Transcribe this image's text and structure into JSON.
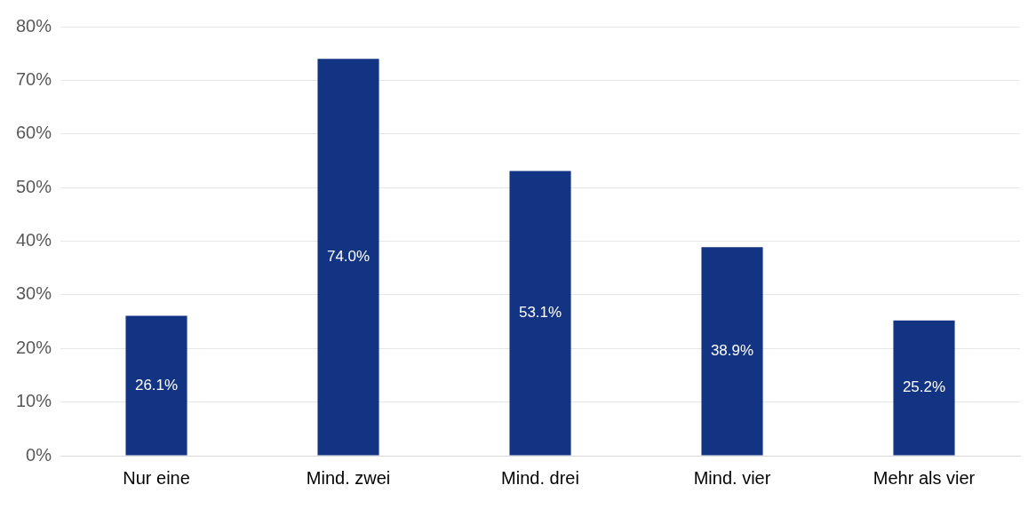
{
  "chart_data": {
    "type": "bar",
    "categories": [
      "Nur eine",
      "Mind. zwei",
      "Mind. drei",
      "Mind. vier",
      "Mehr als vier"
    ],
    "values": [
      26.1,
      74.0,
      53.1,
      38.9,
      25.2
    ],
    "value_labels": [
      "26.1%",
      "74.0%",
      "53.1%",
      "38.9%",
      "25.2%"
    ],
    "color": "#133483",
    "ylim": [
      0,
      80
    ],
    "yticks": [
      {
        "value": 0,
        "label": "0%"
      },
      {
        "value": 10,
        "label": "10%"
      },
      {
        "value": 20,
        "label": "20%"
      },
      {
        "value": 30,
        "label": "30%"
      },
      {
        "value": 40,
        "label": "40%"
      },
      {
        "value": 50,
        "label": "50%"
      },
      {
        "value": 60,
        "label": "60%"
      },
      {
        "value": 70,
        "label": "70%"
      },
      {
        "value": 80,
        "label": "80%"
      }
    ],
    "grid": "y",
    "legend": false
  }
}
